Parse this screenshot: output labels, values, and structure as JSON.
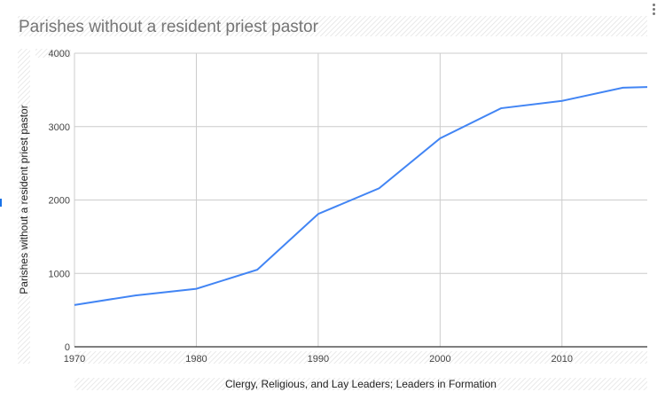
{
  "chart_data": {
    "type": "line",
    "title": "Parishes without a resident priest pastor",
    "xlabel": "Clergy, Religious, and Lay Leaders; Leaders in Formation",
    "ylabel": "Parishes without a resident priest pastor",
    "xlim": [
      1970,
      2017
    ],
    "ylim": [
      0,
      4000
    ],
    "x_ticks": [
      "1970",
      "1980",
      "1990",
      "2000",
      "2010"
    ],
    "y_ticks": [
      "0",
      "1000",
      "2000",
      "3000",
      "4000"
    ],
    "grid": true,
    "legend": "none",
    "series": [
      {
        "color": "#4285f4",
        "x": [
          1970,
          1975,
          1980,
          1985,
          1990,
          1995,
          2000,
          2005,
          2010,
          2015,
          2017
        ],
        "y": [
          570,
          700,
          790,
          1050,
          1810,
          2160,
          2840,
          3250,
          3350,
          3530,
          3540
        ]
      }
    ]
  },
  "ui": {
    "menu_icon": "more-vert-icon"
  }
}
